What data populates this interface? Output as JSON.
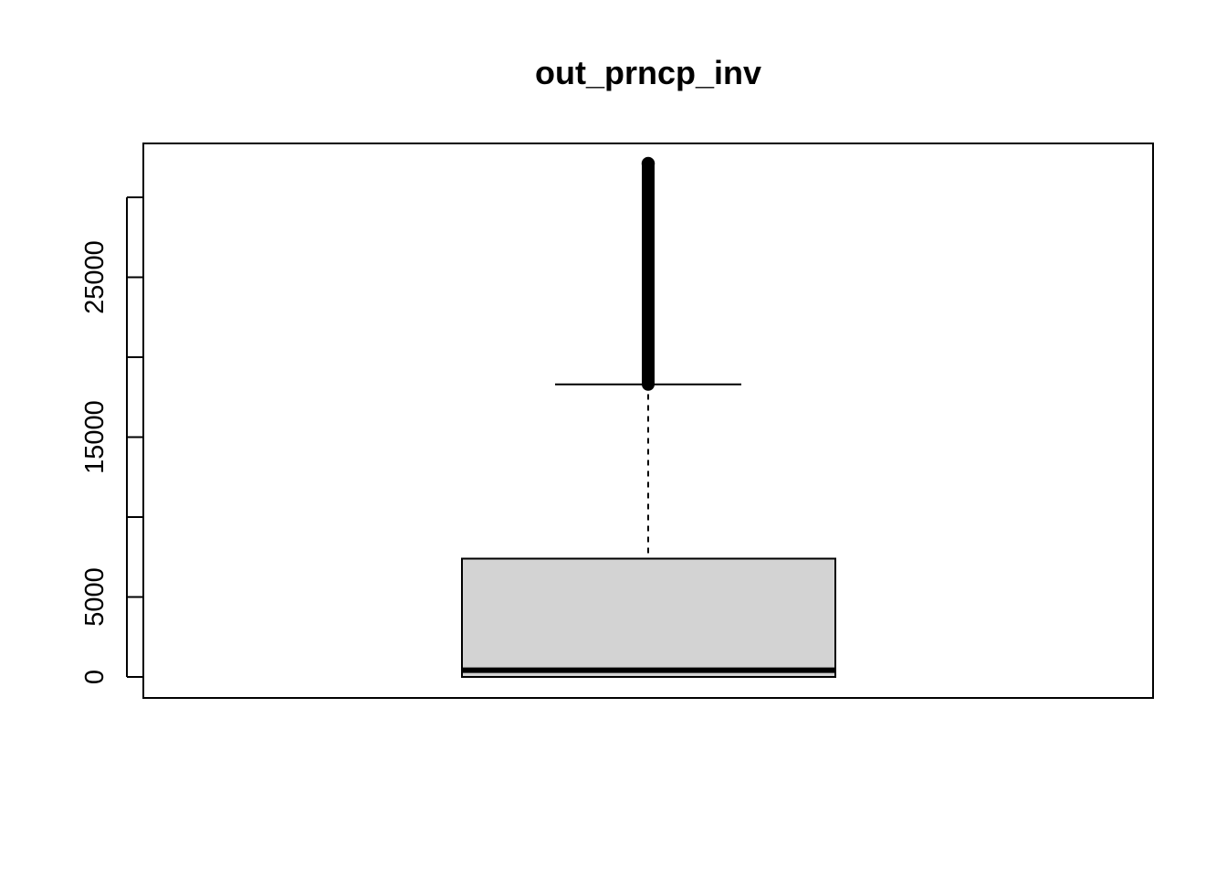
{
  "chart_data": {
    "type": "box",
    "title": "out_prncp_inv",
    "xlabel": "",
    "ylabel": "",
    "ylim": [
      -1300,
      33400
    ],
    "y_ticks": [
      0,
      5000,
      10000,
      15000,
      20000,
      25000,
      30000
    ],
    "y_tick_labels": [
      "0",
      "5000",
      "",
      "15000",
      "",
      "25000",
      ""
    ],
    "grid": false,
    "legend": "none",
    "series": [
      {
        "min": 0,
        "q1": 0,
        "median": 420,
        "q3": 7400,
        "whisker_low": 0,
        "whisker_high": 18300,
        "outliers_from": 18300,
        "outliers_to": 32000,
        "outlier_max": 32000
      }
    ],
    "colors": {
      "box_fill": "#d3d3d3",
      "stroke": "#000000",
      "background": "#ffffff"
    }
  }
}
